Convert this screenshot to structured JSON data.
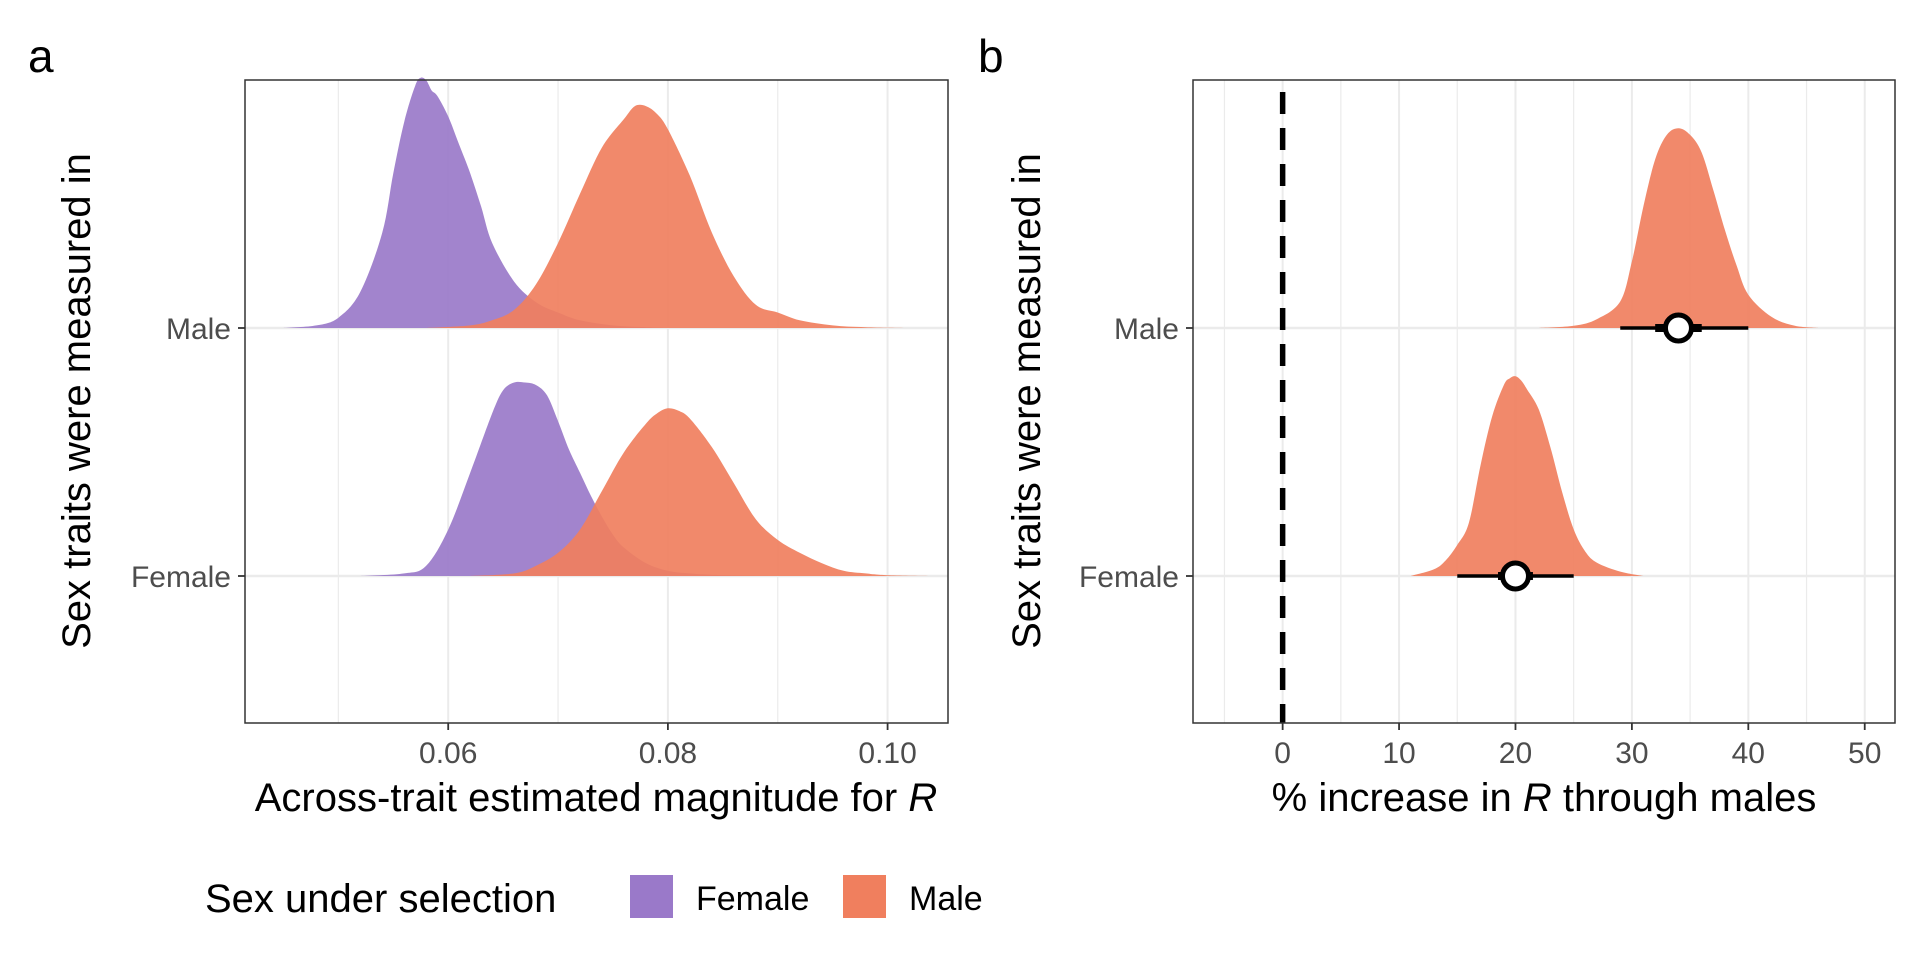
{
  "panels": [
    "a",
    "b"
  ],
  "legend": {
    "title": "Sex under selection",
    "entries": [
      {
        "label": "Female",
        "color": "#9a79c9"
      },
      {
        "label": "Male",
        "color": "#f07f5e"
      }
    ]
  },
  "chart_data": [
    {
      "type": "area",
      "panel": "a",
      "xlabel_prefix": "Across-trait estimated magnitude for ",
      "xlabel_italic": "R",
      "ylabel": "Sex traits were measured in",
      "categories": [
        "Male",
        "Female"
      ],
      "x_ticks": [
        0.06,
        0.08,
        0.1
      ],
      "x_tick_labels": [
        "0.06",
        "0.08",
        "0.10"
      ],
      "xlim": [
        0.0415,
        0.1055
      ],
      "grid": true,
      "series": [
        {
          "category": "Male",
          "sex_under_selection": "Female",
          "color": "#9a79c9",
          "x": [
            0.045,
            0.048,
            0.05,
            0.052,
            0.054,
            0.055,
            0.056,
            0.057,
            0.0575,
            0.058,
            0.0585,
            0.059,
            0.06,
            0.061,
            0.062,
            0.063,
            0.064,
            0.066,
            0.068,
            0.07,
            0.072,
            0.075,
            0.078,
            0.08
          ],
          "density": [
            0.0,
            0.01,
            0.04,
            0.14,
            0.37,
            0.6,
            0.8,
            0.94,
            0.97,
            0.96,
            0.92,
            0.9,
            0.82,
            0.71,
            0.6,
            0.47,
            0.33,
            0.18,
            0.1,
            0.06,
            0.03,
            0.01,
            0.003,
            0.0
          ]
        },
        {
          "category": "Male",
          "sex_under_selection": "Male",
          "color": "#f07f5e",
          "x": [
            0.058,
            0.062,
            0.064,
            0.066,
            0.068,
            0.07,
            0.072,
            0.074,
            0.076,
            0.077,
            0.078,
            0.079,
            0.08,
            0.082,
            0.084,
            0.086,
            0.088,
            0.09,
            0.092,
            0.095,
            0.098,
            0.102
          ],
          "density": [
            0.0,
            0.01,
            0.03,
            0.07,
            0.17,
            0.33,
            0.52,
            0.7,
            0.81,
            0.86,
            0.86,
            0.83,
            0.77,
            0.59,
            0.37,
            0.2,
            0.09,
            0.06,
            0.03,
            0.01,
            0.003,
            0.0
          ]
        },
        {
          "category": "Female",
          "sex_under_selection": "Female",
          "color": "#9a79c9",
          "x": [
            0.052,
            0.056,
            0.058,
            0.06,
            0.062,
            0.064,
            0.065,
            0.066,
            0.067,
            0.068,
            0.069,
            0.07,
            0.071,
            0.072,
            0.073,
            0.074,
            0.075,
            0.076,
            0.078,
            0.08,
            0.082,
            0.085,
            0.09
          ],
          "density": [
            0.0,
            0.01,
            0.04,
            0.18,
            0.4,
            0.63,
            0.72,
            0.75,
            0.75,
            0.74,
            0.7,
            0.6,
            0.49,
            0.4,
            0.31,
            0.23,
            0.16,
            0.11,
            0.05,
            0.02,
            0.01,
            0.003,
            0.0
          ]
        },
        {
          "category": "Female",
          "sex_under_selection": "Male",
          "color": "#f07f5e",
          "x": [
            0.062,
            0.066,
            0.068,
            0.07,
            0.072,
            0.074,
            0.076,
            0.078,
            0.079,
            0.08,
            0.081,
            0.082,
            0.084,
            0.086,
            0.088,
            0.09,
            0.092,
            0.094,
            0.096,
            0.098,
            0.1,
            0.104
          ],
          "density": [
            0.0,
            0.01,
            0.04,
            0.09,
            0.18,
            0.33,
            0.48,
            0.59,
            0.63,
            0.65,
            0.64,
            0.61,
            0.5,
            0.36,
            0.22,
            0.14,
            0.09,
            0.05,
            0.02,
            0.01,
            0.003,
            0.0
          ]
        }
      ]
    },
    {
      "type": "area",
      "panel": "b",
      "xlabel_prefix": "% increase in ",
      "xlabel_italic": "R",
      "xlabel_suffix": " through males",
      "ylabel": "Sex traits were measured in",
      "categories": [
        "Male",
        "Female"
      ],
      "x_ticks": [
        0,
        10,
        20,
        30,
        40,
        50
      ],
      "x_tick_labels": [
        "0",
        "10",
        "20",
        "30",
        "40",
        "50"
      ],
      "xlim": [
        -7.7,
        52.6
      ],
      "grid": true,
      "reference_line": 0,
      "series": [
        {
          "category": "Male",
          "color": "#f07f5e",
          "x": [
            22,
            25,
            27,
            29,
            30,
            31,
            32,
            33,
            34,
            35,
            36,
            37,
            38,
            39,
            40,
            42,
            44,
            46
          ],
          "density": [
            0.0,
            0.01,
            0.04,
            0.12,
            0.3,
            0.55,
            0.76,
            0.87,
            0.9,
            0.87,
            0.79,
            0.62,
            0.44,
            0.28,
            0.15,
            0.05,
            0.01,
            0.0
          ],
          "point": 34,
          "interval_inner": [
            32,
            36
          ],
          "interval_outer": [
            29,
            40
          ]
        },
        {
          "category": "Female",
          "color": "#f07f5e",
          "x": [
            11,
            13,
            14,
            15,
            16,
            17,
            18,
            19,
            19.5,
            20,
            20.5,
            21,
            22,
            23,
            24,
            25,
            26,
            27,
            29,
            31
          ],
          "density": [
            0.0,
            0.03,
            0.07,
            0.14,
            0.24,
            0.5,
            0.72,
            0.86,
            0.89,
            0.9,
            0.88,
            0.84,
            0.75,
            0.58,
            0.38,
            0.21,
            0.11,
            0.06,
            0.02,
            0.0
          ],
          "point": 20,
          "interval_inner": [
            18.5,
            21.5
          ],
          "interval_outer": [
            15,
            25
          ]
        }
      ]
    }
  ]
}
